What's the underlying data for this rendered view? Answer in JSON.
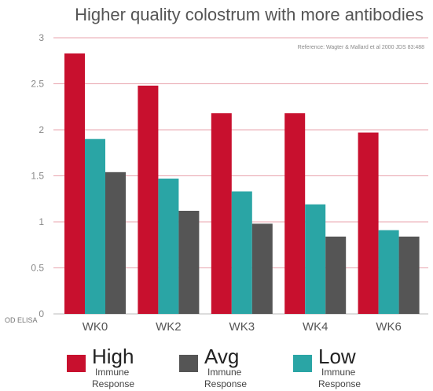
{
  "chart_data": {
    "type": "bar",
    "title": "Higher quality colostrum with more antibodies",
    "reference": "Reference: Wagter & Mallard et al 2000 JDS 83:488",
    "ylabel_bottom": "OD ELISA",
    "categories": [
      "WK0",
      "WK2",
      "WK3",
      "WK4",
      "WK6"
    ],
    "ylim": [
      0,
      3
    ],
    "yticks": [
      0,
      0.5,
      1,
      1.5,
      2,
      2.5,
      3
    ],
    "grid": true,
    "series": [
      {
        "key": "high",
        "color": "#c8102e",
        "values": [
          2.83,
          2.48,
          2.18,
          2.18,
          1.97
        ]
      },
      {
        "key": "low",
        "color": "#2aa5a5",
        "values": [
          1.9,
          1.47,
          1.33,
          1.19,
          0.91
        ]
      },
      {
        "key": "avg",
        "color": "#555555",
        "values": [
          1.54,
          1.12,
          0.98,
          0.84,
          0.84
        ]
      }
    ]
  },
  "legend": [
    {
      "key": "high",
      "name": "High",
      "line1": "Immune",
      "line2": "Response",
      "color": "#c8102e"
    },
    {
      "key": "avg",
      "name": "Avg",
      "line1": "Immune",
      "line2": "Response",
      "color": "#555555"
    },
    {
      "key": "low",
      "name": "Low",
      "line1": "Immune",
      "line2": "Response",
      "color": "#2aa5a5"
    }
  ]
}
